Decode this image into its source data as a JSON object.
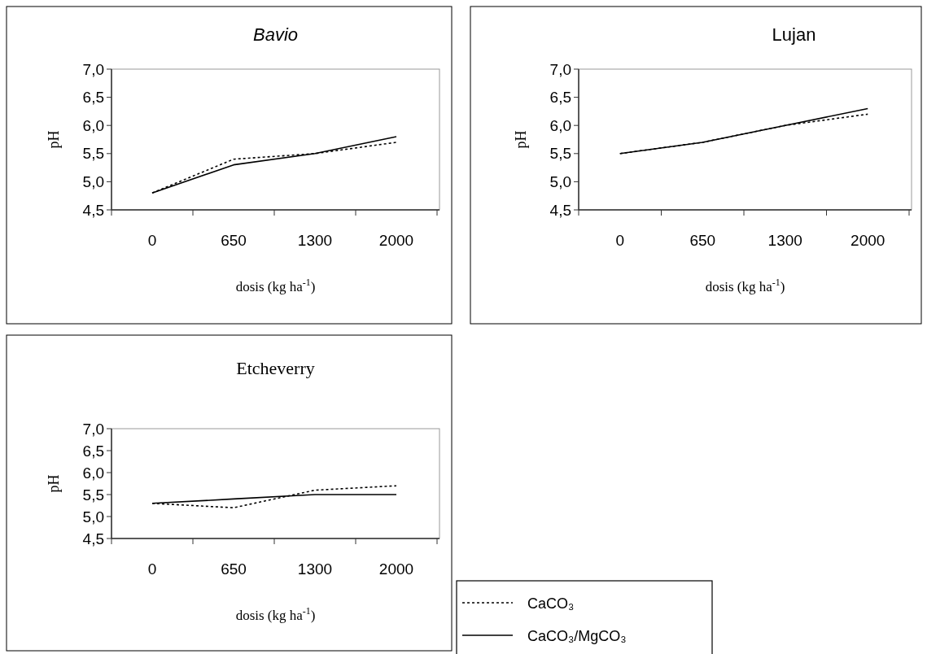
{
  "chart_data": [
    {
      "type": "line",
      "title": "Bavio",
      "xlabel": "dosis (kg ha$^{-1}$)",
      "ylabel": "pH",
      "categories": [
        "0",
        "650",
        "1300",
        "2000"
      ],
      "ylim": [
        4.5,
        7.0
      ],
      "yticks": [
        {
          "value": 4.5,
          "label": "4,5"
        },
        {
          "value": 5.0,
          "label": "5,0"
        },
        {
          "value": 5.5,
          "label": "5,5"
        },
        {
          "value": 6.0,
          "label": "6,0"
        },
        {
          "value": 6.5,
          "label": "6,5"
        },
        {
          "value": 7.0,
          "label": "7,0"
        }
      ],
      "series": [
        {
          "color": "#000000",
          "line_style": "dashed",
          "values": [
            4.8,
            5.4,
            5.5,
            5.7
          ]
        },
        {
          "color": "#000000",
          "line_style": "solid",
          "values": [
            4.8,
            5.3,
            5.5,
            5.8
          ]
        }
      ]
    },
    {
      "type": "line",
      "title": "Lujan",
      "xlabel": "dosis (kg ha$^{-1}$)",
      "ylabel": "pH",
      "categories": [
        "0",
        "650",
        "1300",
        "2000"
      ],
      "ylim": [
        4.5,
        7.0
      ],
      "yticks": [
        {
          "value": 4.5,
          "label": "4,5"
        },
        {
          "value": 5.0,
          "label": "5,0"
        },
        {
          "value": 5.5,
          "label": "5,5"
        },
        {
          "value": 6.0,
          "label": "6,0"
        },
        {
          "value": 6.5,
          "label": "6,5"
        },
        {
          "value": 7.0,
          "label": "7,0"
        }
      ],
      "series": [
        {
          "color": "#000000",
          "line_style": "dashed",
          "values": [
            5.5,
            5.7,
            6.0,
            6.2
          ]
        },
        {
          "color": "#000000",
          "line_style": "solid",
          "values": [
            5.5,
            5.7,
            6.0,
            6.3
          ]
        }
      ]
    },
    {
      "type": "line",
      "title": "Etcheverry",
      "xlabel": "dosis (kg ha$^{-1}$)",
      "ylabel": "pH",
      "categories": [
        "0",
        "650",
        "1300",
        "2000"
      ],
      "ylim": [
        4.5,
        7.0
      ],
      "yticks": [
        {
          "value": 4.5,
          "label": "4,5"
        },
        {
          "value": 5.0,
          "label": "5,0"
        },
        {
          "value": 5.5,
          "label": "5,5"
        },
        {
          "value": 6.0,
          "label": "6,0"
        },
        {
          "value": 6.5,
          "label": "6,5"
        },
        {
          "value": 7.0,
          "label": "7,0"
        }
      ],
      "legend": "bottom right",
      "series": [
        {
          "name": "CaCO₃",
          "color": "#000000",
          "line_style": "dashed",
          "values": [
            5.3,
            5.2,
            5.6,
            5.7
          ]
        },
        {
          "name": "CaCO₃/MgCO₃",
          "color": "#000000",
          "line_style": "solid",
          "values": [
            5.3,
            5.4,
            5.5,
            5.5
          ]
        }
      ]
    }
  ]
}
